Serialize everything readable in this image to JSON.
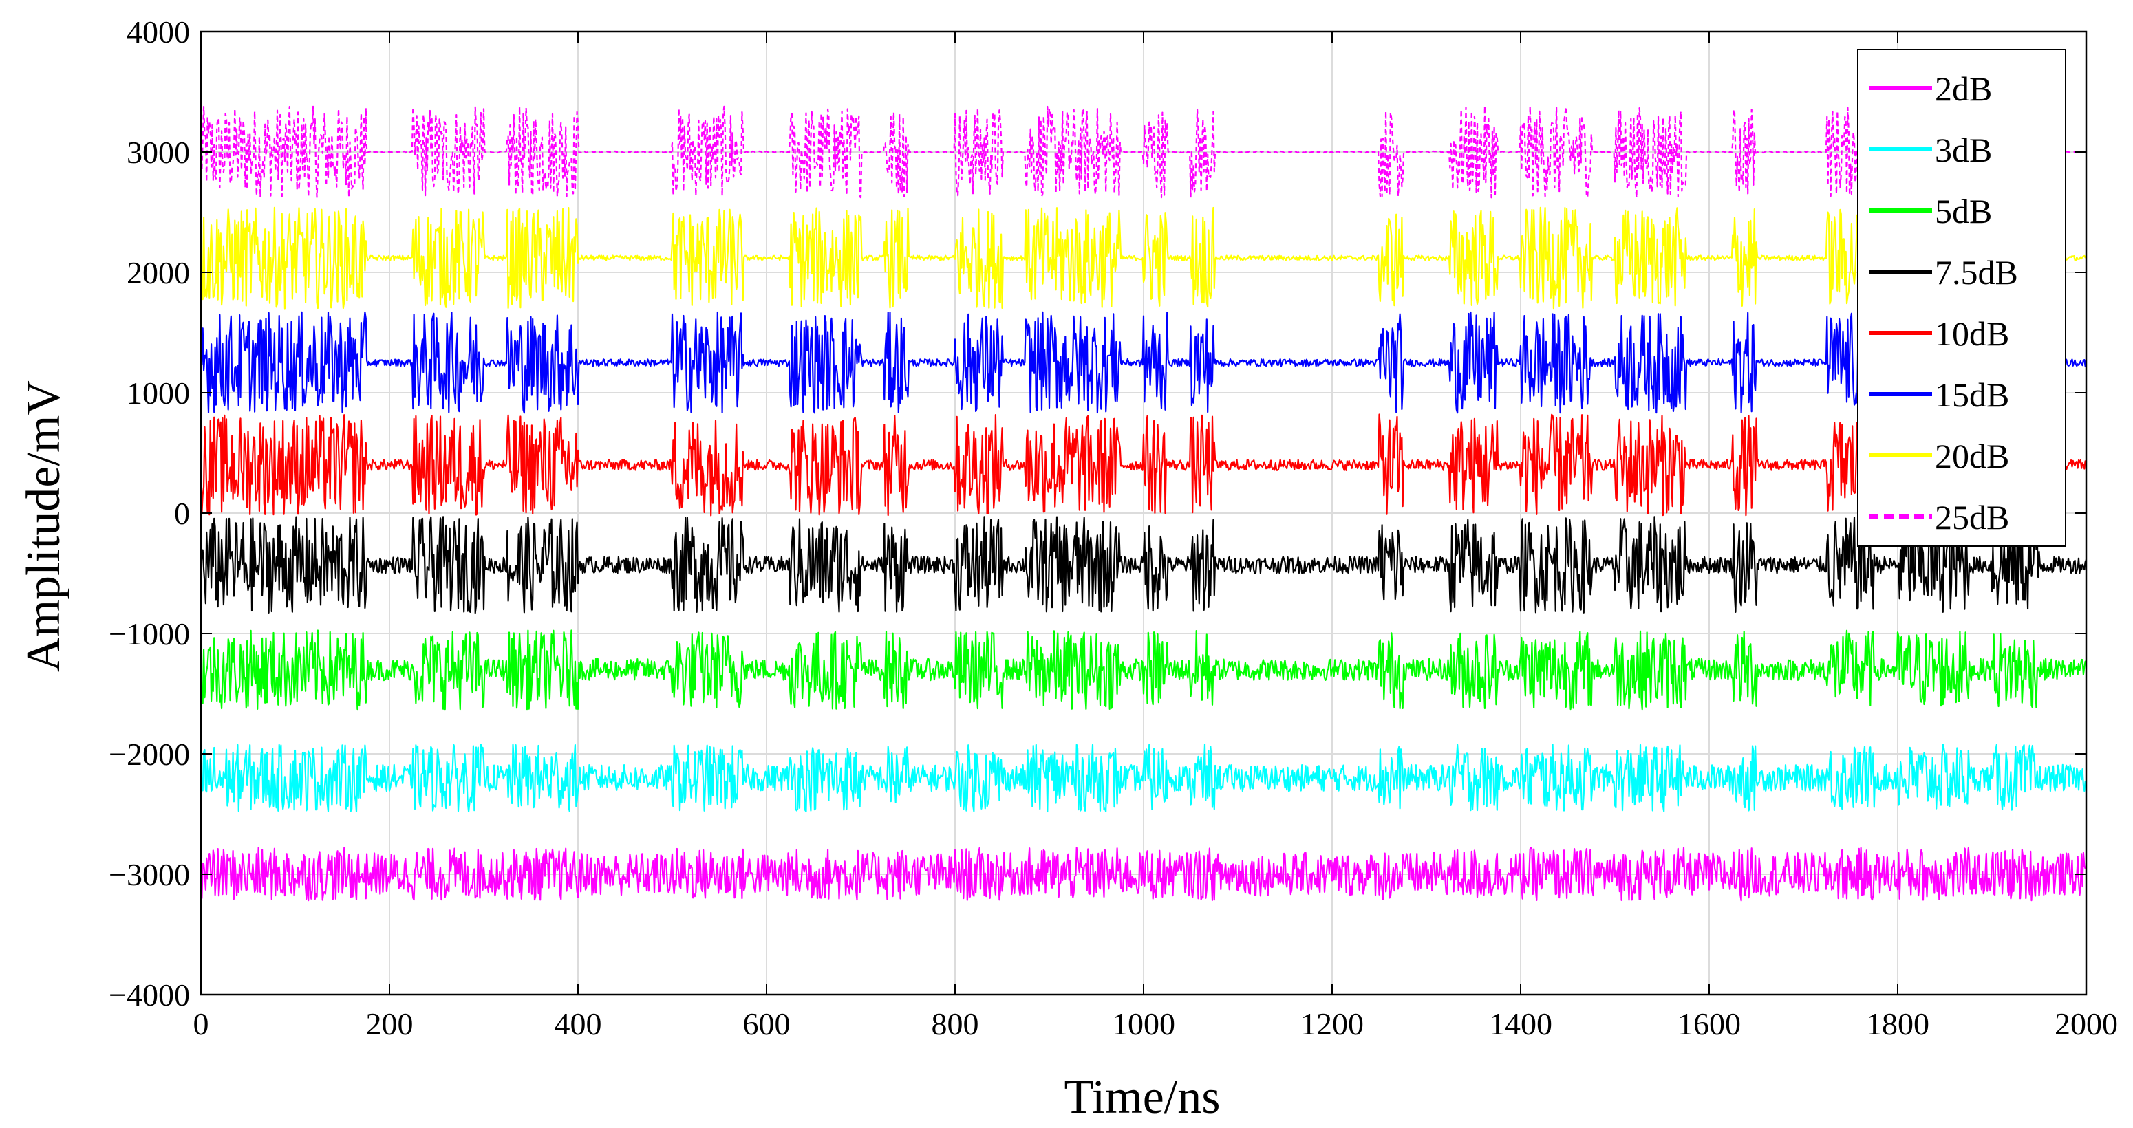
{
  "chart_data": {
    "type": "line",
    "title": "",
    "xlabel": "Time/ns",
    "ylabel": "Amplitude/mV",
    "xlim": [
      0,
      2000
    ],
    "ylim": [
      -4000,
      4000
    ],
    "xticks": [
      0,
      200,
      400,
      600,
      800,
      1000,
      1200,
      1400,
      1600,
      1800,
      2000
    ],
    "xtick_labels": [
      "0",
      "200",
      "400",
      "600",
      "800",
      "1000",
      "1200",
      "1400",
      "1600",
      "1800",
      "2000"
    ],
    "yticks": [
      -4000,
      -3000,
      -2000,
      -1000,
      0,
      1000,
      2000,
      3000,
      4000
    ],
    "ytick_labels": [
      "−4000",
      "−3000",
      "−2000",
      "−1000",
      "0",
      "1000",
      "2000",
      "3000",
      "4000"
    ],
    "grid": true,
    "legend_position": "top-right",
    "burst_segments_ns": [
      [
        0,
        175
      ],
      [
        225,
        300
      ],
      [
        325,
        400
      ],
      [
        500,
        575
      ],
      [
        625,
        700
      ],
      [
        725,
        750
      ],
      [
        800,
        850
      ],
      [
        875,
        975
      ],
      [
        1000,
        1025
      ],
      [
        1050,
        1075
      ],
      [
        1250,
        1275
      ],
      [
        1325,
        1375
      ],
      [
        1400,
        1475
      ],
      [
        1500,
        1575
      ],
      [
        1625,
        1650
      ],
      [
        1725,
        1775
      ],
      [
        1800,
        1875
      ],
      [
        1900,
        1950
      ]
    ],
    "series": [
      {
        "name": "2dB",
        "color": "#ff00ff",
        "style": "solid",
        "baseline": -3000,
        "burst_amplitude": 220,
        "noise_amplitude": 180
      },
      {
        "name": "3dB",
        "color": "#00ffff",
        "style": "solid",
        "baseline": -2200,
        "burst_amplitude": 280,
        "noise_amplitude": 110
      },
      {
        "name": "5dB",
        "color": "#00ff00",
        "style": "solid",
        "baseline": -1300,
        "burst_amplitude": 330,
        "noise_amplitude": 90
      },
      {
        "name": "7.5dB",
        "color": "#000000",
        "style": "solid",
        "baseline": -430,
        "burst_amplitude": 400,
        "noise_amplitude": 70
      },
      {
        "name": "10dB",
        "color": "#ff0000",
        "style": "solid",
        "baseline": 400,
        "burst_amplitude": 420,
        "noise_amplitude": 45
      },
      {
        "name": "15dB",
        "color": "#0000ff",
        "style": "solid",
        "baseline": 1250,
        "burst_amplitude": 420,
        "noise_amplitude": 30
      },
      {
        "name": "20dB",
        "color": "#ffff00",
        "style": "solid",
        "baseline": 2120,
        "burst_amplitude": 420,
        "noise_amplitude": 20
      },
      {
        "name": "25dB",
        "color": "#ff00ff",
        "style": "dashed",
        "baseline": 3000,
        "burst_amplitude": 380,
        "noise_amplitude": 6
      }
    ]
  }
}
